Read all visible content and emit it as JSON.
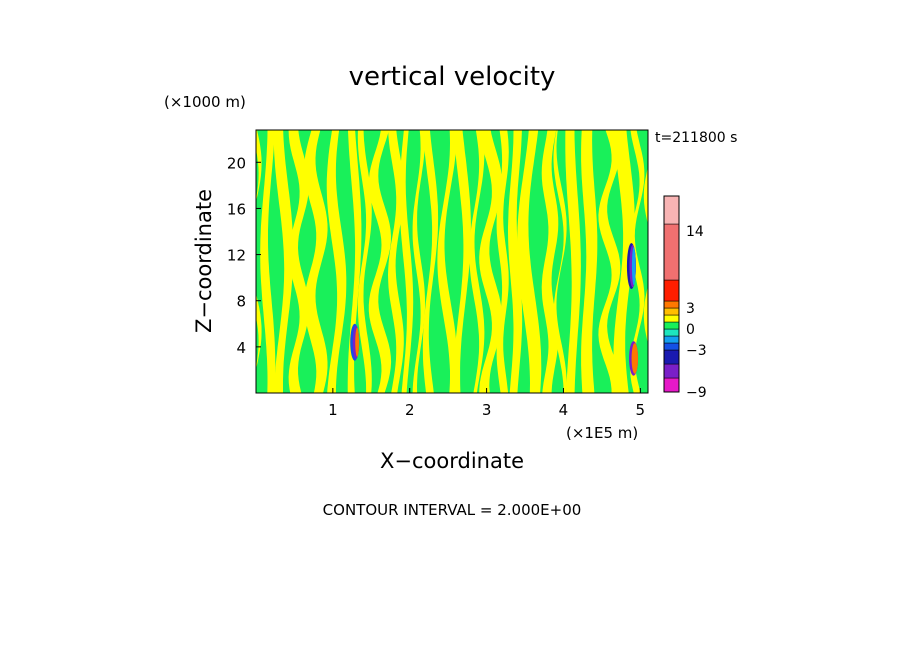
{
  "chart_data": {
    "type": "heatmap",
    "title": "vertical velocity",
    "xlabel": "X−coordinate",
    "ylabel": "Z−coordinate",
    "x_unit": "(×1E5 m)",
    "y_unit": "(×1000 m)",
    "time_label": "t=211800 s",
    "footer": "CONTOUR INTERVAL = 2.000E+00",
    "xlim": [
      0,
      5.1
    ],
    "ylim": [
      0,
      22.8
    ],
    "x_ticks": [
      {
        "value": 1,
        "label": "1"
      },
      {
        "value": 2,
        "label": "2"
      },
      {
        "value": 3,
        "label": "3"
      },
      {
        "value": 4,
        "label": "4"
      },
      {
        "value": 5,
        "label": "5"
      }
    ],
    "y_ticks": [
      {
        "value": 4,
        "label": "4"
      },
      {
        "value": 8,
        "label": "8"
      },
      {
        "value": 12,
        "label": "12"
      },
      {
        "value": 16,
        "label": "16"
      },
      {
        "value": 20,
        "label": "20"
      }
    ],
    "colorbar": {
      "range": [
        -9,
        19
      ],
      "labels": [
        {
          "value": 14,
          "label": "14"
        },
        {
          "value": 3,
          "label": "3"
        },
        {
          "value": 0,
          "label": "0"
        },
        {
          "value": -3,
          "label": "−3"
        },
        {
          "value": -9,
          "label": "−9"
        }
      ],
      "bands": [
        {
          "from": -9,
          "to": -7,
          "color": "#e619c8"
        },
        {
          "from": -7,
          "to": -5,
          "color": "#7a1fc8"
        },
        {
          "from": -5,
          "to": -3,
          "color": "#1a1ab0"
        },
        {
          "from": -3,
          "to": -2,
          "color": "#1450e6"
        },
        {
          "from": -2,
          "to": -1,
          "color": "#14a0f0"
        },
        {
          "from": -1,
          "to": 0,
          "color": "#1ee6be"
        },
        {
          "from": 0,
          "to": 1,
          "color": "#19f05a"
        },
        {
          "from": 1,
          "to": 2,
          "color": "#ffff00"
        },
        {
          "from": 2,
          "to": 3,
          "color": "#ffbe00"
        },
        {
          "from": 3,
          "to": 4,
          "color": "#ff7800"
        },
        {
          "from": 4,
          "to": 7,
          "color": "#ff1e00"
        },
        {
          "from": 7,
          "to": 15,
          "color": "#f07070"
        },
        {
          "from": 15,
          "to": 19,
          "color": "#f8b4b4"
        }
      ]
    },
    "field": {
      "dominant_colors": [
        "#19f05a",
        "#ffff00"
      ],
      "features": [
        {
          "name": "plume-west",
          "x": 1.3,
          "z_range": [
            2.8,
            6.0
          ],
          "colors": [
            "#1450e6",
            "#7a1fc8",
            "#ff7800"
          ]
        },
        {
          "name": "plume-east",
          "x": 4.9,
          "z_range": [
            9.0,
            13.0
          ],
          "colors": [
            "#1a1ab0",
            "#7a1fc8",
            "#14a0f0"
          ]
        },
        {
          "name": "plume-east-low",
          "x": 4.92,
          "z_range": [
            1.5,
            4.5
          ],
          "colors": [
            "#7a1fc8",
            "#ff7800"
          ]
        }
      ]
    }
  }
}
